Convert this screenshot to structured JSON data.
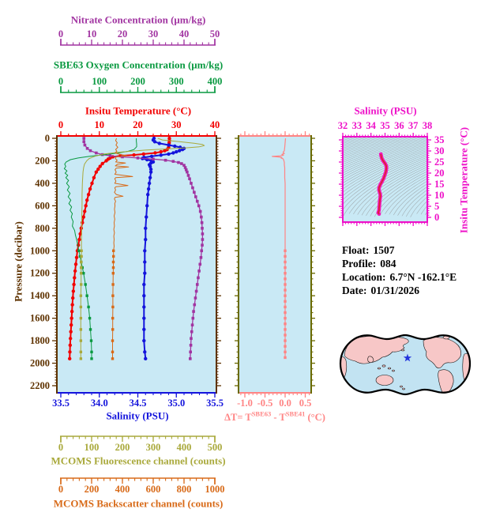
{
  "figure": {
    "colors": {
      "background": "#FFFFFF",
      "panel_bg": "#C9E9F5",
      "nitrate": "#A134A1",
      "oxygen": "#099940",
      "temperature": "#F20000",
      "pressure": "#5E3200",
      "salinity": "#1414DC",
      "fluorescence": "#A9A93B",
      "backscatter": "#D86A18",
      "delta_t": "#FF8484",
      "delta_frame": "#6A6A00",
      "ts_magenta": "#EE10C8",
      "ts_curve_outer": "#F614BC",
      "ts_curve_inner": "#D62828",
      "contour": "#9FA8AC",
      "map_ocean": "#C2E3F2",
      "map_land": "#F7C7C7",
      "map_outline": "#000000",
      "star": "#2233DD",
      "info_text": "#000000"
    },
    "axes": {
      "nitrate": {
        "title": "Nitrate Concentration (μm/kg)",
        "ticks": [
          "0",
          "10",
          "20",
          "30",
          "40",
          "50"
        ],
        "min": 0,
        "max": 50
      },
      "oxygen": {
        "title": "SBE63 Oxygen Concentration (μm/kg)",
        "ticks": [
          "0",
          "100",
          "200",
          "300",
          "400"
        ],
        "min": 0,
        "max": 400
      },
      "temperature": {
        "title": "Insitu Temperature (°C)",
        "ticks": [
          "0",
          "10",
          "20",
          "30",
          "40"
        ],
        "min": 0,
        "max": 40
      },
      "pressure": {
        "title": "Pressure (decibar)",
        "ticks": [
          "0",
          "200",
          "400",
          "600",
          "800",
          "1000",
          "1200",
          "1400",
          "1600",
          "1800",
          "2000",
          "2200"
        ],
        "min": 0,
        "max": 2200
      },
      "salinity": {
        "title": "Salinity (PSU)",
        "ticks": [
          "33.5",
          "34.0",
          "34.5",
          "35.0",
          "35.5"
        ],
        "min": 33.5,
        "max": 35.5
      },
      "fluorescence": {
        "title": "MCOMS Fluorescence channel (counts)",
        "ticks": [
          "0",
          "100",
          "200",
          "300",
          "400",
          "500"
        ],
        "min": 0,
        "max": 500
      },
      "backscatter": {
        "title": "MCOMS Backscatter channel (counts)",
        "ticks": [
          "0",
          "200",
          "400",
          "600",
          "800",
          "1000"
        ],
        "min": 0,
        "max": 1000
      },
      "delta_t": {
        "ticks": [
          "-1.0",
          "-0.5",
          "0.0",
          "0.5"
        ],
        "min": -1.0,
        "max": 0.5,
        "label": {
          "pre": "ΔT= T",
          "sup1": "SBE63",
          "mid": " - T",
          "sup2": "SBE41",
          "post": " (°C)"
        }
      },
      "ts_salinity": {
        "title": "Salinity (PSU)",
        "ticks": [
          "32",
          "33",
          "34",
          "35",
          "36",
          "37",
          "38"
        ],
        "min": 32,
        "max": 38
      },
      "ts_temperature": {
        "title": "Insitu Temperature (°C)",
        "ticks": [
          "0",
          "5",
          "10",
          "15",
          "20",
          "25",
          "30",
          "35"
        ],
        "min": 0,
        "max": 35
      }
    },
    "info": {
      "float_label": "Float:",
      "float_value": "1507",
      "profile_label": "Profile:",
      "profile_value": "084",
      "location_label": "Location:",
      "location_value": "6.7°N  -162.1°E",
      "date_label": "Date:",
      "date_value": "01/31/2026"
    },
    "map": {
      "star_fx": 0.518,
      "star_fy": 0.407
    }
  },
  "chart_data": [
    {
      "panel": "main",
      "type": "line",
      "name": "insitu-temperature",
      "axis": "temperature",
      "marker": "circle",
      "pressure": [
        0,
        20,
        40,
        60,
        80,
        100,
        110,
        120,
        130,
        140,
        148,
        155,
        165,
        175,
        185,
        200,
        225,
        250,
        275,
        300,
        350,
        400,
        450,
        500,
        550,
        600,
        650,
        700,
        750,
        800,
        850,
        900,
        950,
        1000,
        1060,
        1120,
        1180,
        1240,
        1300,
        1360,
        1420,
        1480,
        1540,
        1600,
        1660,
        1720,
        1780,
        1840,
        1900,
        1960
      ],
      "values": [
        28.2,
        28.2,
        28.15,
        28.1,
        28.0,
        27.6,
        27.0,
        26.0,
        24.5,
        21.5,
        19.0,
        15.5,
        13.5,
        12.8,
        12.3,
        11.8,
        10.8,
        10.2,
        9.7,
        9.2,
        8.6,
        8.1,
        7.6,
        7.2,
        6.8,
        6.5,
        6.2,
        5.9,
        5.6,
        5.3,
        5.05,
        4.8,
        4.55,
        4.3,
        4.1,
        3.9,
        3.72,
        3.55,
        3.4,
        3.25,
        3.12,
        3.0,
        2.9,
        2.8,
        2.7,
        2.6,
        2.5,
        2.42,
        2.35,
        2.3
      ]
    },
    {
      "panel": "main",
      "type": "line",
      "name": "salinity",
      "axis": "salinity",
      "marker": "circle",
      "pressure": [
        0,
        15,
        30,
        45,
        60,
        70,
        80,
        90,
        100,
        110,
        120,
        130,
        140,
        150,
        160,
        170,
        180,
        190,
        200,
        210,
        220,
        235,
        250,
        275,
        300,
        350,
        400,
        450,
        500,
        600,
        700,
        800,
        900,
        1000,
        1100,
        1200,
        1300,
        1400,
        1500,
        1600,
        1700,
        1800,
        1900,
        1960
      ],
      "values": [
        34.71,
        34.7,
        34.72,
        34.78,
        34.9,
        34.98,
        35.05,
        35.1,
        35.08,
        35.04,
        35.0,
        34.96,
        34.9,
        34.8,
        34.68,
        34.58,
        34.56,
        34.62,
        34.68,
        34.7,
        34.67,
        34.65,
        34.66,
        34.67,
        34.67,
        34.66,
        34.65,
        34.64,
        34.63,
        34.62,
        34.61,
        34.6,
        34.6,
        34.59,
        34.59,
        34.59,
        34.58,
        34.58,
        34.58,
        34.58,
        34.58,
        34.58,
        34.59,
        34.6
      ]
    },
    {
      "panel": "main",
      "type": "line",
      "name": "nitrate",
      "axis": "nitrate",
      "marker": "square",
      "pressure": [
        0,
        30,
        60,
        90,
        110,
        130,
        145,
        155,
        165,
        175,
        185,
        195,
        205,
        215,
        225,
        240,
        260,
        280,
        300,
        330,
        360,
        400,
        440,
        480,
        520,
        560,
        600,
        650,
        700,
        750,
        800,
        850,
        900,
        950,
        1000,
        1060,
        1120,
        1180,
        1240,
        1300,
        1360,
        1420,
        1480,
        1540,
        1600,
        1660,
        1720,
        1780,
        1840,
        1900,
        1960
      ],
      "values": [
        7.5,
        7.5,
        7.8,
        8.6,
        9.6,
        11.5,
        13.5,
        16.0,
        20.0,
        25.0,
        30.0,
        34.0,
        36.5,
        38.2,
        39.2,
        40.0,
        40.4,
        40.7,
        41.0,
        41.4,
        41.8,
        42.3,
        42.8,
        43.3,
        43.8,
        44.3,
        44.8,
        45.3,
        45.6,
        45.8,
        45.9,
        46.0,
        46.0,
        45.9,
        45.7,
        45.5,
        45.2,
        44.9,
        44.6,
        44.3,
        44.0,
        43.7,
        43.4,
        43.1,
        42.9,
        42.7,
        42.5,
        42.3,
        42.2,
        42.1,
        42.0
      ]
    },
    {
      "panel": "main",
      "type": "line",
      "name": "sbe63-oxygen",
      "axis": "oxygen",
      "marker": "square-deep",
      "pressure": [
        0,
        25,
        50,
        75,
        100,
        115,
        130,
        145,
        160,
        175,
        190,
        210,
        230,
        250,
        270,
        290,
        310,
        330,
        350,
        375,
        400,
        430,
        460,
        490,
        520,
        550,
        580,
        610,
        640,
        670,
        700,
        740,
        780,
        820,
        860,
        900,
        950,
        1000,
        1050,
        1100,
        1150,
        1200,
        1300,
        1400,
        1500,
        1600,
        1700,
        1800,
        1900,
        1960
      ],
      "values": [
        196,
        196,
        197,
        197,
        190,
        175,
        150,
        115,
        75,
        45,
        25,
        14,
        10,
        13,
        9,
        16,
        11,
        18,
        13,
        20,
        15,
        22,
        17,
        24,
        19,
        26,
        21,
        28,
        24,
        30,
        27,
        32,
        30,
        36,
        38,
        41,
        44,
        47,
        50,
        53,
        56,
        59,
        64,
        68,
        72,
        75,
        77,
        79,
        80,
        80
      ]
    },
    {
      "panel": "main",
      "type": "line",
      "name": "mcoms-fluorescence",
      "axis": "fluorescence",
      "marker": "square-deep",
      "pressure": [
        0,
        15,
        30,
        45,
        55,
        65,
        75,
        85,
        95,
        105,
        115,
        125,
        140,
        160,
        180,
        200,
        230,
        260,
        300,
        350,
        400,
        500,
        600,
        700,
        800,
        900,
        1000,
        1050,
        1100,
        1150,
        1200,
        1300,
        1400,
        1500,
        1600,
        1700,
        1800,
        1900,
        1960
      ],
      "values": [
        315,
        330,
        385,
        435,
        460,
        466,
        450,
        405,
        340,
        275,
        225,
        185,
        140,
        110,
        92,
        84,
        77,
        74,
        72,
        71,
        70,
        69,
        69,
        68,
        68,
        67,
        67,
        67,
        66,
        66,
        66,
        66,
        65,
        65,
        65,
        65,
        65,
        65,
        65
      ]
    },
    {
      "panel": "main",
      "type": "line",
      "name": "mcoms-backscatter",
      "axis": "backscatter",
      "marker": "square-deep",
      "pressure": [
        0,
        20,
        40,
        60,
        80,
        100,
        115,
        130,
        145,
        155,
        165,
        180,
        195,
        210,
        220,
        230,
        245,
        255,
        265,
        280,
        300,
        320,
        340,
        350,
        360,
        380,
        400,
        420,
        430,
        440,
        460,
        480,
        500,
        515,
        525,
        540,
        560,
        580,
        600,
        630,
        660,
        690,
        720,
        750,
        780,
        810,
        840,
        870,
        900,
        930,
        960,
        1000,
        1050,
        1100,
        1150,
        1200,
        1300,
        1400,
        1500,
        1600,
        1700,
        1800,
        1900,
        1960
      ],
      "values": [
        362,
        356,
        366,
        358,
        370,
        356,
        364,
        352,
        390,
        430,
        360,
        354,
        366,
        356,
        420,
        368,
        354,
        440,
        360,
        352,
        360,
        350,
        466,
        356,
        350,
        358,
        350,
        436,
        358,
        350,
        356,
        348,
        360,
        404,
        352,
        348,
        356,
        350,
        352,
        348,
        352,
        346,
        350,
        346,
        348,
        344,
        348,
        344,
        346,
        344,
        346,
        342,
        342,
        341,
        341,
        340,
        339,
        338,
        338,
        337,
        337,
        336,
        336,
        336
      ]
    },
    {
      "panel": "delta",
      "type": "line",
      "name": "delta-t",
      "axis": "delta_t",
      "marker": "square-deep",
      "pressure": [
        0,
        40,
        80,
        110,
        125,
        135,
        143,
        150,
        156,
        161,
        166,
        170,
        175,
        182,
        190,
        200,
        215,
        235,
        260,
        300,
        350,
        400,
        500,
        600,
        700,
        800,
        900,
        1000,
        1050,
        1100,
        1150,
        1200,
        1250,
        1300,
        1350,
        1400,
        1450,
        1500,
        1550,
        1600,
        1650,
        1700,
        1750,
        1800,
        1850,
        1900,
        1950
      ],
      "values": [
        0.01,
        0.0,
        -0.01,
        -0.02,
        -0.05,
        -0.02,
        -0.08,
        -0.04,
        -0.12,
        -0.32,
        -0.15,
        -0.08,
        -0.1,
        -0.05,
        -0.04,
        -0.03,
        -0.02,
        -0.02,
        -0.01,
        -0.01,
        -0.01,
        0.0,
        0.0,
        0.0,
        0.0,
        0.0,
        0.0,
        0.0,
        0.0,
        0.0,
        0.0,
        0.0,
        0.0,
        0.0,
        0.0,
        0.0,
        0.0,
        0.0,
        0.0,
        0.0,
        0.0,
        0.0,
        0.0,
        0.0,
        0.0,
        0.0,
        0.0
      ]
    },
    {
      "panel": "ts",
      "type": "line",
      "name": "ts-curve",
      "salinity": [
        34.7,
        34.72,
        34.74,
        34.78,
        34.85,
        34.94,
        35.03,
        35.09,
        35.1,
        35.06,
        34.98,
        34.88,
        34.76,
        34.65,
        34.58,
        34.57,
        34.61,
        34.66,
        34.67,
        34.65,
        34.63,
        34.62,
        34.61,
        34.6,
        34.59,
        34.58,
        34.58,
        34.57,
        34.54,
        34.51,
        34.55,
        34.58
      ],
      "temperature": [
        28.6,
        28.0,
        27.3,
        26.5,
        25.7,
        24.9,
        24.1,
        23.2,
        22.2,
        20.6,
        19.0,
        17.4,
        15.9,
        14.6,
        13.5,
        12.5,
        11.5,
        10.5,
        9.5,
        8.7,
        7.9,
        7.1,
        6.3,
        5.6,
        4.9,
        4.3,
        3.7,
        3.1,
        2.6,
        2.1,
        1.8,
        1.5
      ]
    }
  ]
}
